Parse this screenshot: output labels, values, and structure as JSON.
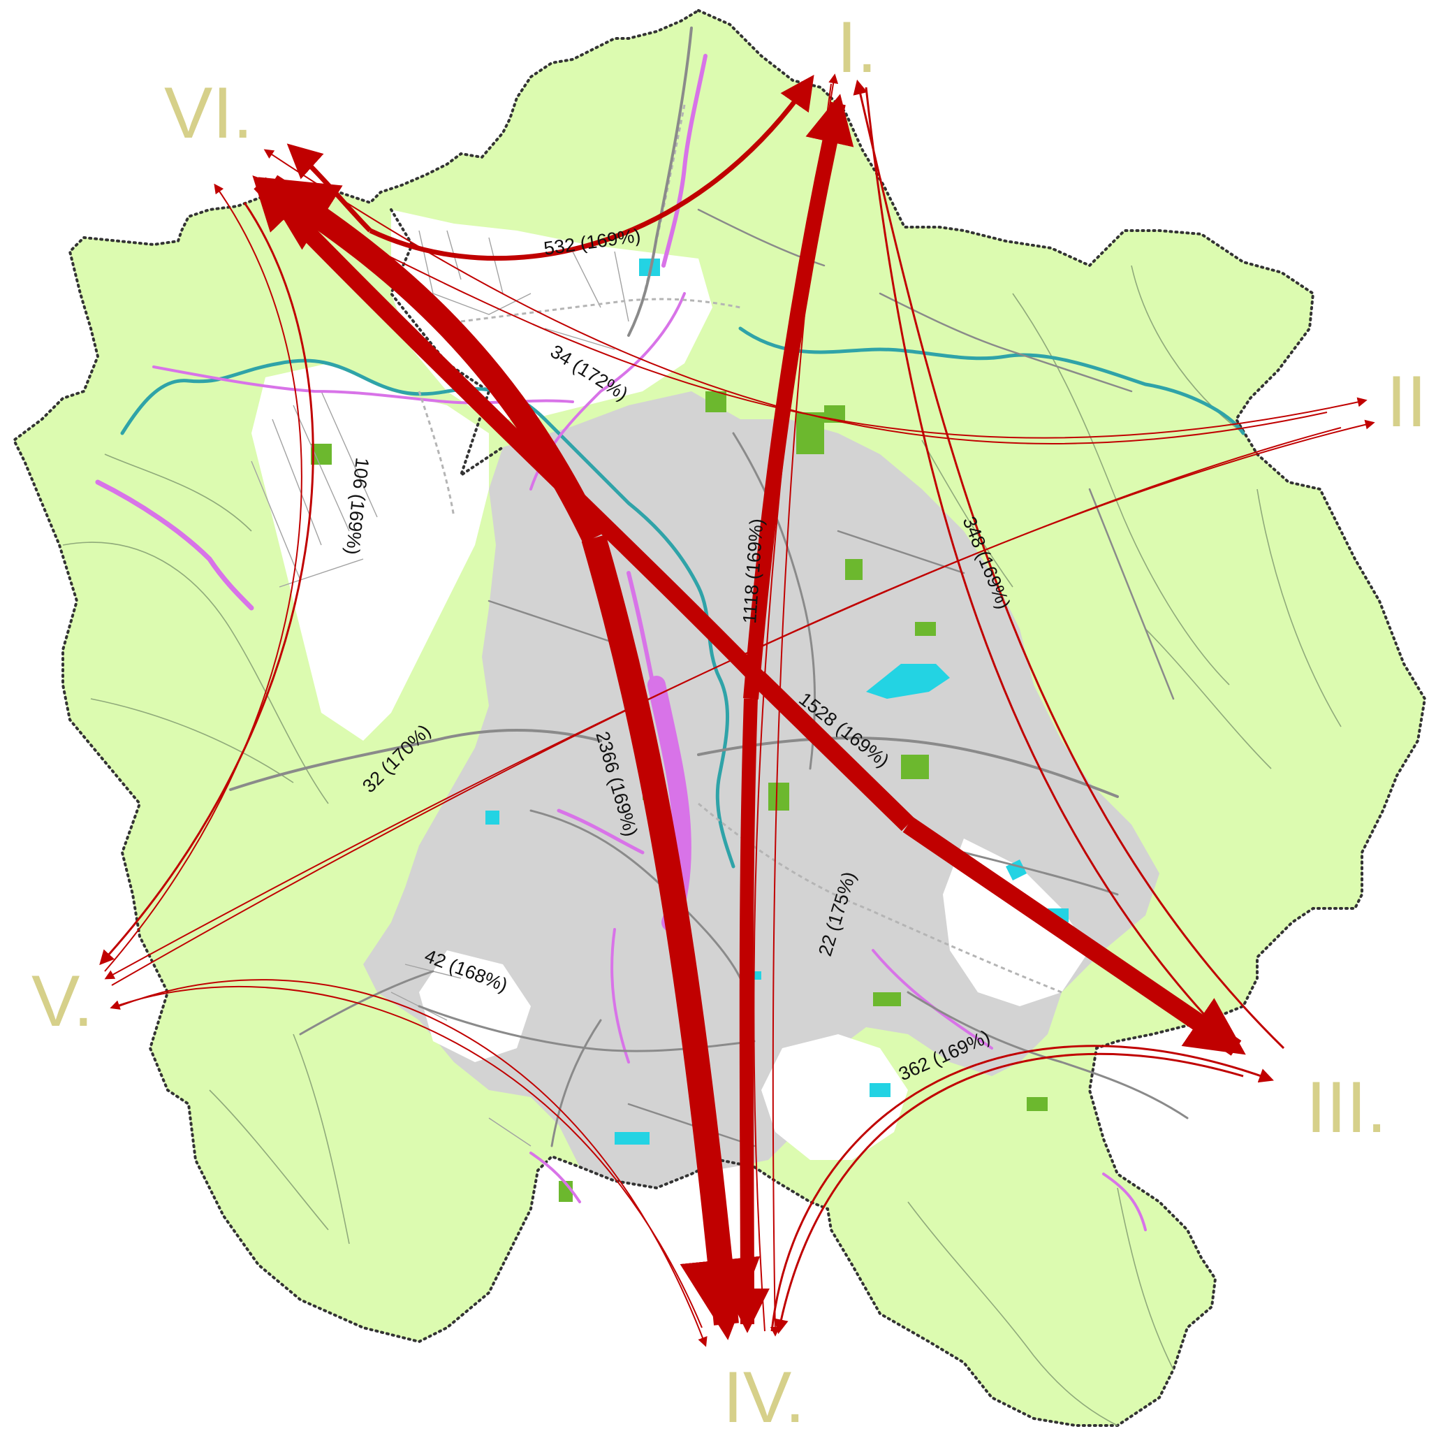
{
  "zones": {
    "I": "I.",
    "II": "II",
    "III": "III.",
    "IV": "IV.",
    "V": "V.",
    "VI": "VI."
  },
  "flows": {
    "vi_iv": "2366 (169%)",
    "vi_iii": "1528 (169%)",
    "iv_i": "1118 (169%)",
    "vi_i": "532 (169%)",
    "iii_iv": "362 (169%)",
    "i_iii": "348 (169%)",
    "vi_v": "106 (169%)",
    "v_iv": "42 (168%)",
    "vi_ii": "34 (172%)",
    "v_ii": "32 (170%)",
    "iv_i_thin": "22 (175%)"
  },
  "colors": {
    "zone_label": "#d6d08a",
    "flow_arrow": "#c00000",
    "greenery": "#dcfbb0",
    "urban": "#d3d3d3",
    "park": "#6cb82e",
    "water": "#23d3e3",
    "industrial": "#d97ce8",
    "boundary": "#333333"
  }
}
